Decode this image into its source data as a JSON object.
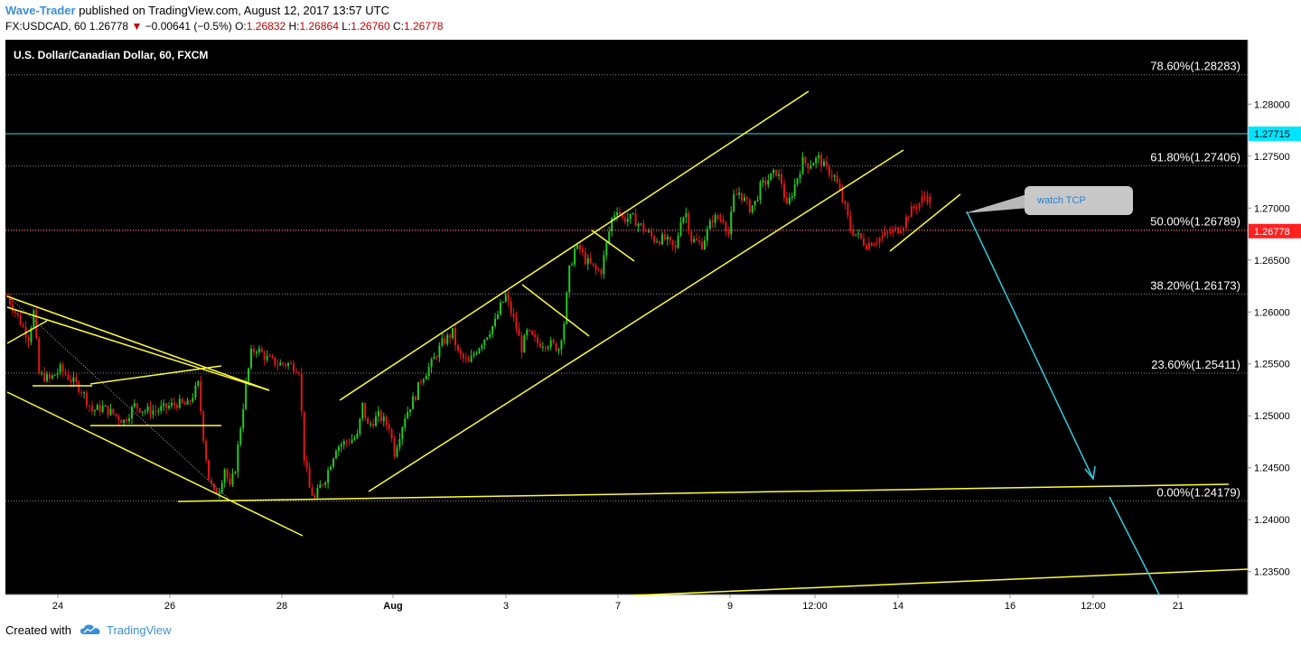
{
  "header": {
    "author": "Wave-Trader",
    "published_text": "published on TradingView.com, August 12, 2017 13:57 UTC",
    "symbol_label": "FX:USDCAD, 60",
    "last": "1.26778",
    "down_marker": "▼",
    "change": "−0.00641 (−0.5%)",
    "o_label": "O:",
    "o_value": "1.26832",
    "h_label": "H:",
    "h_value": "1.26864",
    "l_label": "L:",
    "l_value": "1.26760",
    "c_label": "C:",
    "c_value": "1.26778"
  },
  "footer": {
    "created_with": "Created with",
    "brand": "TradingView"
  },
  "colors": {
    "background": "#000000",
    "up": "#26c626",
    "down": "#e01818",
    "trendline": "#ffff33",
    "arrow": "#33ccdd",
    "fib_line": "#777777",
    "axis_text": "#ffffff",
    "price_badge": "#ff2020",
    "cyan_badge": "#00e5ff"
  },
  "chart_data": {
    "type": "candlestick",
    "title": "U.S. Dollar/Canadian Dollar, 60, FXCM",
    "ylim": [
      1.2328,
      1.2862
    ],
    "x_tick_labels": [
      "24",
      "26",
      "28",
      "Aug",
      "3",
      "7",
      "9",
      "12:00",
      "14",
      "16",
      "12:00",
      "21"
    ],
    "y_tick_labels": [
      "1.28000",
      "1.27500",
      "1.27000",
      "1.26500",
      "1.26000",
      "1.25500",
      "1.25000",
      "1.24500",
      "1.24000",
      "1.23500"
    ],
    "y_tick_values": [
      1.28,
      1.275,
      1.27,
      1.265,
      1.26,
      1.255,
      1.25,
      1.245,
      1.24,
      1.235
    ],
    "fib_levels": [
      {
        "label": "78.60%(1.28283)",
        "value": 1.28283
      },
      {
        "label": "61.80%(1.27406)",
        "value": 1.27406
      },
      {
        "label": "50.00%(1.26789)",
        "value": 1.26789
      },
      {
        "label": "38.20%(1.26173)",
        "value": 1.26173
      },
      {
        "label": "23.60%(1.25411)",
        "value": 1.25411
      },
      {
        "label": "0.00%(1.24179)",
        "value": 1.24179
      }
    ],
    "horizontal_level": {
      "label": "1.27715",
      "value": 1.27715
    },
    "last_price": {
      "label": "1.26778",
      "value": 1.26778
    },
    "annotation": "watch TCP",
    "close_path": [
      {
        "t": 0,
        "c": 1.2615
      },
      {
        "t": 2,
        "c": 1.2595
      },
      {
        "t": 4,
        "c": 1.2575
      },
      {
        "t": 5,
        "c": 1.26
      },
      {
        "t": 6,
        "c": 1.254
      },
      {
        "t": 8,
        "c": 1.2535
      },
      {
        "t": 10,
        "c": 1.2545
      },
      {
        "t": 12,
        "c": 1.2535
      },
      {
        "t": 14,
        "c": 1.2525
      },
      {
        "t": 16,
        "c": 1.2505
      },
      {
        "t": 18,
        "c": 1.2508
      },
      {
        "t": 20,
        "c": 1.2502
      },
      {
        "t": 22,
        "c": 1.2495
      },
      {
        "t": 24,
        "c": 1.251
      },
      {
        "t": 26,
        "c": 1.2505
      },
      {
        "t": 28,
        "c": 1.2505
      },
      {
        "t": 30,
        "c": 1.2508
      },
      {
        "t": 32,
        "c": 1.2512
      },
      {
        "t": 34,
        "c": 1.251
      },
      {
        "t": 36,
        "c": 1.253
      },
      {
        "t": 37,
        "c": 1.248
      },
      {
        "t": 38,
        "c": 1.244
      },
      {
        "t": 39,
        "c": 1.2425
      },
      {
        "t": 40,
        "c": 1.243
      },
      {
        "t": 41,
        "c": 1.245
      },
      {
        "t": 42,
        "c": 1.243
      },
      {
        "t": 43,
        "c": 1.245
      },
      {
        "t": 44,
        "c": 1.249
      },
      {
        "t": 45,
        "c": 1.253
      },
      {
        "t": 46,
        "c": 1.256
      },
      {
        "t": 47,
        "c": 1.2565
      },
      {
        "t": 49,
        "c": 1.2555
      },
      {
        "t": 51,
        "c": 1.255
      },
      {
        "t": 53,
        "c": 1.255
      },
      {
        "t": 55,
        "c": 1.2545
      },
      {
        "t": 56,
        "c": 1.246
      },
      {
        "t": 57,
        "c": 1.243
      },
      {
        "t": 58,
        "c": 1.242
      },
      {
        "t": 59,
        "c": 1.2432
      },
      {
        "t": 60,
        "c": 1.244
      },
      {
        "t": 62,
        "c": 1.247
      },
      {
        "t": 64,
        "c": 1.2475
      },
      {
        "t": 66,
        "c": 1.248
      },
      {
        "t": 67,
        "c": 1.251
      },
      {
        "t": 68,
        "c": 1.249
      },
      {
        "t": 70,
        "c": 1.25
      },
      {
        "t": 72,
        "c": 1.249
      },
      {
        "t": 73,
        "c": 1.2465
      },
      {
        "t": 75,
        "c": 1.25
      },
      {
        "t": 77,
        "c": 1.252
      },
      {
        "t": 78,
        "c": 1.2535
      },
      {
        "t": 80,
        "c": 1.255
      },
      {
        "t": 82,
        "c": 1.257
      },
      {
        "t": 84,
        "c": 1.258
      },
      {
        "t": 85,
        "c": 1.256
      },
      {
        "t": 87,
        "c": 1.255
      },
      {
        "t": 88,
        "c": 1.256
      },
      {
        "t": 90,
        "c": 1.2575
      },
      {
        "t": 92,
        "c": 1.259
      },
      {
        "t": 93,
        "c": 1.2605
      },
      {
        "t": 94,
        "c": 1.2615
      },
      {
        "t": 95,
        "c": 1.26
      },
      {
        "t": 96,
        "c": 1.2585
      },
      {
        "t": 97,
        "c": 1.2565
      },
      {
        "t": 98,
        "c": 1.258
      },
      {
        "t": 100,
        "c": 1.257
      },
      {
        "t": 102,
        "c": 1.257
      },
      {
        "t": 104,
        "c": 1.2565
      },
      {
        "t": 105,
        "c": 1.259
      },
      {
        "t": 106,
        "c": 1.264
      },
      {
        "t": 107,
        "c": 1.266
      },
      {
        "t": 108,
        "c": 1.266
      },
      {
        "t": 109,
        "c": 1.265
      },
      {
        "t": 111,
        "c": 1.264
      },
      {
        "t": 112,
        "c": 1.264
      },
      {
        "t": 113,
        "c": 1.2665
      },
      {
        "t": 114,
        "c": 1.269
      },
      {
        "t": 115,
        "c": 1.27
      },
      {
        "t": 116,
        "c": 1.269
      },
      {
        "t": 118,
        "c": 1.269
      },
      {
        "t": 120,
        "c": 1.268
      },
      {
        "t": 122,
        "c": 1.267
      },
      {
        "t": 124,
        "c": 1.267
      },
      {
        "t": 126,
        "c": 1.266
      },
      {
        "t": 127,
        "c": 1.269
      },
      {
        "t": 128,
        "c": 1.2695
      },
      {
        "t": 129,
        "c": 1.267
      },
      {
        "t": 131,
        "c": 1.2665
      },
      {
        "t": 133,
        "c": 1.269
      },
      {
        "t": 135,
        "c": 1.269
      },
      {
        "t": 136,
        "c": 1.2675
      },
      {
        "t": 137,
        "c": 1.271
      },
      {
        "t": 138,
        "c": 1.2715
      },
      {
        "t": 140,
        "c": 1.27
      },
      {
        "t": 141,
        "c": 1.2705
      },
      {
        "t": 142,
        "c": 1.272
      },
      {
        "t": 144,
        "c": 1.273
      },
      {
        "t": 145,
        "c": 1.2735
      },
      {
        "t": 146,
        "c": 1.2725
      },
      {
        "t": 147,
        "c": 1.27
      },
      {
        "t": 148,
        "c": 1.2715
      },
      {
        "t": 149,
        "c": 1.273
      },
      {
        "t": 150,
        "c": 1.2745
      },
      {
        "t": 151,
        "c": 1.2742
      },
      {
        "t": 153,
        "c": 1.2748
      },
      {
        "t": 154,
        "c": 1.274
      },
      {
        "t": 156,
        "c": 1.273
      },
      {
        "t": 157,
        "c": 1.2715
      },
      {
        "t": 158,
        "c": 1.27
      },
      {
        "t": 159,
        "c": 1.268
      },
      {
        "t": 161,
        "c": 1.267
      },
      {
        "t": 162,
        "c": 1.2665
      },
      {
        "t": 164,
        "c": 1.267
      },
      {
        "t": 166,
        "c": 1.2675
      },
      {
        "t": 168,
        "c": 1.268
      },
      {
        "t": 169,
        "c": 1.2685
      },
      {
        "t": 170,
        "c": 1.2695
      },
      {
        "t": 171,
        "c": 1.27
      },
      {
        "t": 172,
        "c": 1.2705
      },
      {
        "t": 173,
        "c": 1.2712
      },
      {
        "t": 174,
        "c": 1.2708
      }
    ]
  }
}
